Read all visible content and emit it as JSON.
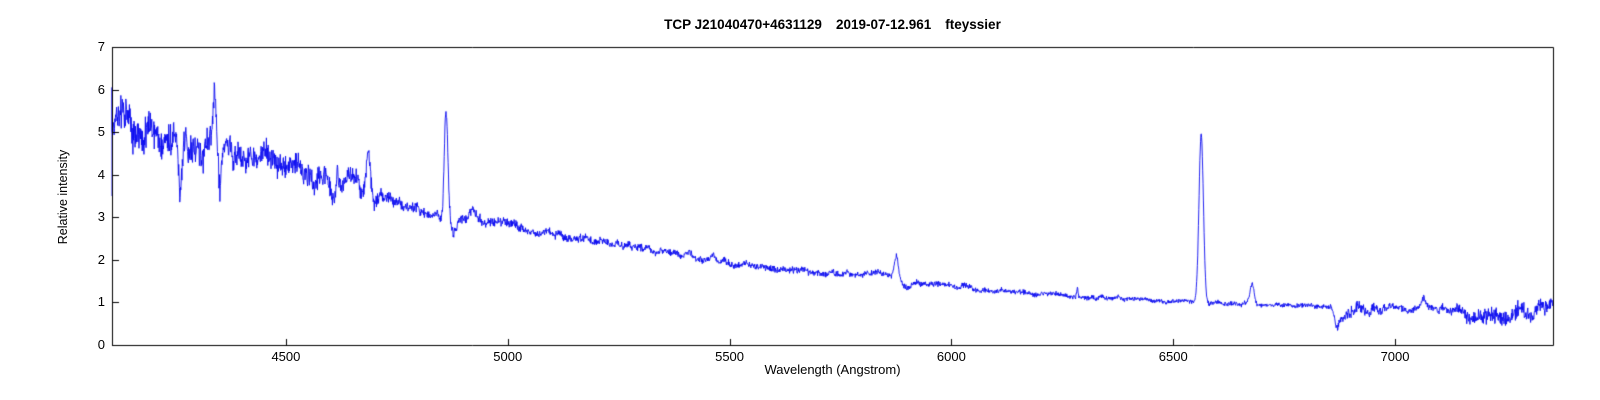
{
  "chart_data": {
    "type": "line",
    "title": "TCP J21040470+4631129  2019-07-12.961   fteyssier",
    "title_parts": {
      "object": "TCP J21040470+4631129",
      "date": "2019-07-12.961",
      "observer": "fteyssier"
    },
    "xlabel": "Wavelength (Angstrom)",
    "ylabel": "Relative intensity",
    "xlim": [
      4108,
      7356
    ],
    "ylim": [
      0,
      7
    ],
    "x_ticks": [
      4500,
      5000,
      5500,
      6000,
      6500,
      7000
    ],
    "y_ticks": [
      0,
      1,
      2,
      3,
      4,
      5,
      6,
      7
    ],
    "grid": false,
    "legend": "none",
    "line_color": "#0a0af0",
    "axis_color": "#000000",
    "background_color": "#ffffff",
    "seed": 1234,
    "start_spike": {
      "wavelength": 4108,
      "from": 3.5,
      "to": 6.05
    },
    "continuum": [
      [
        4108,
        5.3
      ],
      [
        4150,
        5.18
      ],
      [
        4200,
        5.02
      ],
      [
        4250,
        4.85
      ],
      [
        4300,
        4.65
      ],
      [
        4340,
        4.52
      ],
      [
        4400,
        4.45
      ],
      [
        4450,
        4.33
      ],
      [
        4500,
        4.18
      ],
      [
        4550,
        4.02
      ],
      [
        4600,
        3.82
      ],
      [
        4650,
        3.7
      ],
      [
        4700,
        3.58
      ],
      [
        4750,
        3.35
      ],
      [
        4800,
        3.15
      ],
      [
        4850,
        3.05
      ],
      [
        4900,
        2.95
      ],
      [
        4950,
        2.87
      ],
      [
        5000,
        2.8
      ],
      [
        5100,
        2.6
      ],
      [
        5200,
        2.42
      ],
      [
        5300,
        2.26
      ],
      [
        5400,
        2.1
      ],
      [
        5500,
        1.93
      ],
      [
        5600,
        1.79
      ],
      [
        5700,
        1.7
      ],
      [
        5800,
        1.66
      ],
      [
        5855,
        1.68
      ],
      [
        5895,
        1.48
      ],
      [
        5950,
        1.44
      ],
      [
        6000,
        1.39
      ],
      [
        6100,
        1.28
      ],
      [
        6200,
        1.2
      ],
      [
        6300,
        1.13
      ],
      [
        6400,
        1.08
      ],
      [
        6500,
        1.02
      ],
      [
        6560,
        1.0
      ],
      [
        6650,
        0.98
      ],
      [
        6750,
        0.93
      ],
      [
        6860,
        0.9
      ],
      [
        6920,
        0.82
      ],
      [
        7000,
        0.85
      ],
      [
        7080,
        0.84
      ],
      [
        7150,
        0.8
      ],
      [
        7200,
        0.74
      ],
      [
        7260,
        0.73
      ],
      [
        7310,
        0.77
      ],
      [
        7356,
        0.85
      ]
    ],
    "features": [
      {
        "center": 4262,
        "amplitude": -1.25,
        "sigma": 4
      },
      {
        "center": 4274,
        "amplitude": 0.3,
        "sigma": 3
      },
      {
        "center": 4340,
        "amplitude": 1.3,
        "sigma": 3.5
      },
      {
        "center": 4352,
        "amplitude": -0.85,
        "sigma": 4
      },
      {
        "center": 4471,
        "amplitude": 0.18,
        "sigma": 7
      },
      {
        "center": 4605,
        "amplitude": -0.48,
        "sigma": 6
      },
      {
        "center": 4616,
        "amplitude": 0.35,
        "sigma": 1.2
      },
      {
        "center": 4645,
        "amplitude": 0.38,
        "sigma": 11
      },
      {
        "center": 4686,
        "amplitude": 0.85,
        "sigma": 4.5
      },
      {
        "center": 4702,
        "amplitude": -0.2,
        "sigma": 5
      },
      {
        "center": 4849,
        "amplitude": -0.12,
        "sigma": 4
      },
      {
        "center": 4861,
        "amplitude": 2.42,
        "sigma": 4
      },
      {
        "center": 4878,
        "amplitude": -0.42,
        "sigma": 6
      },
      {
        "center": 4922,
        "amplitude": 0.26,
        "sigma": 6
      },
      {
        "center": 5016,
        "amplitude": 0.15,
        "sigma": 6
      },
      {
        "center": 5411,
        "amplitude": 0.1,
        "sigma": 6
      },
      {
        "center": 5461,
        "amplitude": 0.08,
        "sigma": 6
      },
      {
        "center": 5876,
        "amplitude": 0.52,
        "sigma": 4.5
      },
      {
        "center": 5898,
        "amplitude": -0.12,
        "sigma": 8
      },
      {
        "center": 6284,
        "amplitude": 0.22,
        "sigma": 1.5
      },
      {
        "center": 6563,
        "amplitude": 3.97,
        "sigma": 5
      },
      {
        "center": 6678,
        "amplitude": 0.45,
        "sigma": 4.5
      },
      {
        "center": 6869,
        "amplitude": -0.5,
        "sigma": 5
      },
      {
        "center": 6888,
        "amplitude": -0.2,
        "sigma": 9
      },
      {
        "center": 7065,
        "amplitude": 0.25,
        "sigma": 5
      },
      {
        "center": 7185,
        "amplitude": -0.1,
        "sigma": 15
      },
      {
        "center": 7245,
        "amplitude": -0.08,
        "sigma": 18
      },
      {
        "center": 7353,
        "amplitude": 0.18,
        "sigma": 2
      }
    ],
    "noise_profile": [
      [
        4108,
        0.36
      ],
      [
        4200,
        0.32
      ],
      [
        4300,
        0.3
      ],
      [
        4400,
        0.26
      ],
      [
        4500,
        0.23
      ],
      [
        4600,
        0.2
      ],
      [
        4700,
        0.15
      ],
      [
        4800,
        0.11
      ],
      [
        4900,
        0.1
      ],
      [
        5000,
        0.09
      ],
      [
        5200,
        0.08
      ],
      [
        5400,
        0.07
      ],
      [
        5600,
        0.065
      ],
      [
        5900,
        0.055
      ],
      [
        6200,
        0.05
      ],
      [
        6500,
        0.042
      ],
      [
        6750,
        0.04
      ],
      [
        6860,
        0.05
      ],
      [
        6890,
        0.13
      ],
      [
        6960,
        0.09
      ],
      [
        7020,
        0.065
      ],
      [
        7100,
        0.07
      ],
      [
        7160,
        0.14
      ],
      [
        7200,
        0.17
      ],
      [
        7300,
        0.16
      ],
      [
        7356,
        0.12
      ]
    ]
  }
}
